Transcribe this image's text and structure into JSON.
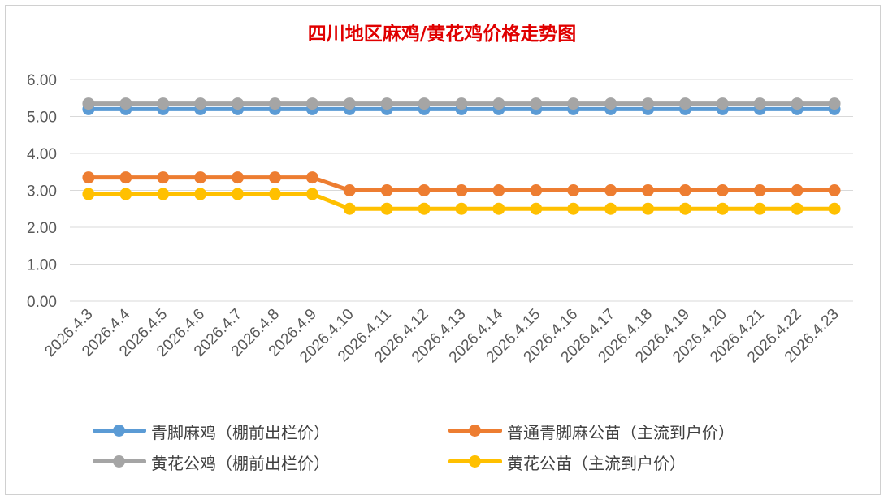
{
  "chart_data": {
    "type": "line",
    "title": "四川地区麻鸡/黄花鸡价格走势图",
    "xlabel": "",
    "ylabel": "",
    "ylim": [
      0,
      6
    ],
    "yticks": [
      "0.00",
      "1.00",
      "2.00",
      "3.00",
      "4.00",
      "5.00",
      "6.00"
    ],
    "grid": true,
    "legend_position": "bottom",
    "categories": [
      "2026.4.3",
      "2026.4.4",
      "2026.4.5",
      "2026.4.6",
      "2026.4.7",
      "2026.4.8",
      "2026.4.9",
      "2026.4.10",
      "2026.4.11",
      "2026.4.12",
      "2026.4.13",
      "2026.4.14",
      "2026.4.15",
      "2026.4.16",
      "2026.4.17",
      "2026.4.18",
      "2026.4.19",
      "2026.4.20",
      "2026.4.21",
      "2026.4.22",
      "2026.4.23"
    ],
    "series": [
      {
        "name": "青脚麻鸡（棚前出栏价）",
        "color": "#5b9bd5",
        "values": [
          5.2,
          5.2,
          5.2,
          5.2,
          5.2,
          5.2,
          5.2,
          5.2,
          5.2,
          5.2,
          5.2,
          5.2,
          5.2,
          5.2,
          5.2,
          5.2,
          5.2,
          5.2,
          5.2,
          5.2,
          5.2
        ]
      },
      {
        "name": "普通青脚麻公苗（主流到户价）",
        "color": "#ed7d31",
        "values": [
          3.35,
          3.35,
          3.35,
          3.35,
          3.35,
          3.35,
          3.35,
          3.0,
          3.0,
          3.0,
          3.0,
          3.0,
          3.0,
          3.0,
          3.0,
          3.0,
          3.0,
          3.0,
          3.0,
          3.0,
          3.0
        ]
      },
      {
        "name": "黄花公鸡（棚前出栏价）",
        "color": "#a5a5a5",
        "values": [
          5.35,
          5.35,
          5.35,
          5.35,
          5.35,
          5.35,
          5.35,
          5.35,
          5.35,
          5.35,
          5.35,
          5.35,
          5.35,
          5.35,
          5.35,
          5.35,
          5.35,
          5.35,
          5.35,
          5.35,
          5.35
        ]
      },
      {
        "name": "黄花公苗（主流到户价）",
        "color": "#ffc000",
        "values": [
          2.9,
          2.9,
          2.9,
          2.9,
          2.9,
          2.9,
          2.9,
          2.5,
          2.5,
          2.5,
          2.5,
          2.5,
          2.5,
          2.5,
          2.5,
          2.5,
          2.5,
          2.5,
          2.5,
          2.5,
          2.5
        ]
      }
    ]
  }
}
